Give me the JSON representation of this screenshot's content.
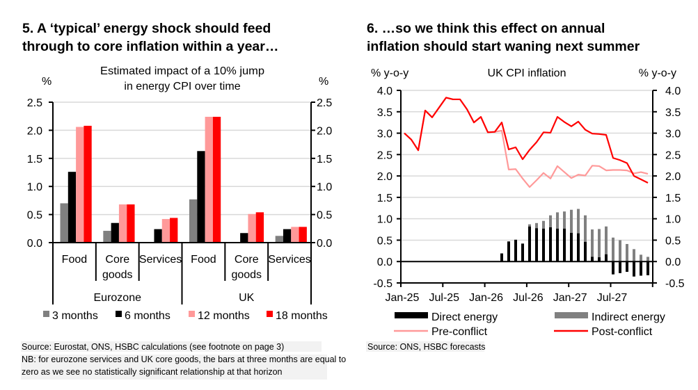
{
  "chart_data": [
    {
      "type": "bar",
      "title": "5. A ‘typical’ energy shock should feed through to core inflation within a year…",
      "title_lines": [
        "5. A ‘typical’ energy shock should feed",
        "through to core inflation within a year…"
      ],
      "subtitle_lines": [
        "Estimated impact of a 10% jump",
        "in energy CPI over time"
      ],
      "ylabel_left": "%",
      "ylabel_right": "%",
      "ylim": [
        0,
        2.5
      ],
      "yticks": [
        "0.0",
        "0.5",
        "1.0",
        "1.5",
        "2.0",
        "2.5"
      ],
      "grid": true,
      "groups": [
        {
          "label": "Eurozone",
          "categories": [
            "Food",
            "Core goods",
            "Services"
          ]
        },
        {
          "label": "UK",
          "categories": [
            "Food",
            "Core goods",
            "Services"
          ]
        }
      ],
      "category_lines": [
        [
          "Food"
        ],
        [
          "Core",
          "goods"
        ],
        [
          "Services"
        ],
        [
          "Food"
        ],
        [
          "Core",
          "goods"
        ],
        [
          "Services"
        ]
      ],
      "series": [
        {
          "name": "3 months",
          "color": "#808080",
          "values": [
            0.7,
            0.21,
            0.0,
            0.77,
            0.0,
            0.12
          ]
        },
        {
          "name": "6 months",
          "color": "#000000",
          "values": [
            1.26,
            0.35,
            0.24,
            1.63,
            0.17,
            0.24
          ]
        },
        {
          "name": "12 months",
          "color": "#ff9999",
          "values": [
            2.06,
            0.68,
            0.42,
            2.24,
            0.51,
            0.28
          ]
        },
        {
          "name": "18 months",
          "color": "#ff0000",
          "values": [
            2.08,
            0.68,
            0.44,
            2.24,
            0.54,
            0.28
          ]
        }
      ],
      "legend_position": "bottom",
      "source": "Source: Eurostat, ONS, HSBC calculations (see footnote on page 3)",
      "note_lines": [
        "NB: for eurozone services and UK core goods, the bars at three months are equal to",
        "zero as we see no statistically significant relationship at that horizon"
      ]
    },
    {
      "type": "bar+line",
      "title_lines": [
        "6. …so we think this effect on annual",
        "inflation should start waning next summer"
      ],
      "subtitle": "UK CPI inflation",
      "ylabel_left": "% y-o-y",
      "ylabel_right": "% y-o-y",
      "ylim": [
        -0.5,
        4.0
      ],
      "yticks": [
        "-0.5",
        "0.0",
        "0.5",
        "1.0",
        "1.5",
        "2.0",
        "2.5",
        "3.0",
        "3.5",
        "4.0"
      ],
      "grid": true,
      "x_start": "Jan-25",
      "x_frequency": "monthly",
      "xticks": [
        "Jan-25",
        "Jul-25",
        "Jan-26",
        "Jul-26",
        "Jan-27",
        "Jul-27"
      ],
      "bars": [
        {
          "name": "Direct energy",
          "color": "#000000",
          "values": [
            0,
            0,
            0,
            0,
            0,
            0,
            0,
            0,
            0,
            0,
            0,
            0,
            0,
            0,
            0.19,
            0.47,
            0.51,
            0.42,
            0.82,
            0.78,
            0.77,
            0.8,
            0.77,
            0.77,
            0.67,
            0.66,
            0.46,
            0.11,
            0.1,
            0.17,
            -0.3,
            -0.27,
            -0.24,
            -0.35,
            -0.33,
            -0.32
          ]
        },
        {
          "name": "Indirect energy",
          "color": "#808080",
          "values": [
            0,
            0,
            0,
            0,
            0,
            0,
            0,
            0,
            0,
            0,
            0,
            0,
            0,
            0,
            0,
            0,
            0,
            0,
            0.05,
            0.12,
            0.18,
            0.28,
            0.38,
            0.4,
            0.54,
            0.57,
            0.62,
            0.64,
            0.66,
            0.65,
            0.56,
            0.5,
            0.41,
            0.29,
            0.16,
            0.11
          ]
        }
      ],
      "lines": [
        {
          "name": "Pre-conflict",
          "color": "#ff9999",
          "values": [
            3.0,
            2.85,
            2.6,
            3.53,
            3.37,
            3.6,
            3.83,
            3.79,
            3.79,
            3.56,
            3.25,
            3.38,
            3.02,
            3.03,
            3.06,
            2.15,
            2.16,
            1.94,
            1.74,
            1.9,
            2.07,
            1.94,
            2.23,
            2.09,
            1.95,
            2.03,
            2.01,
            2.24,
            2.23,
            2.13,
            2.14,
            2.14,
            2.13,
            2.06,
            2.09,
            2.05
          ]
        },
        {
          "name": "Post-conflict",
          "color": "#ff0000",
          "values": [
            3.0,
            2.85,
            2.6,
            3.53,
            3.37,
            3.6,
            3.83,
            3.79,
            3.79,
            3.56,
            3.25,
            3.38,
            3.02,
            3.03,
            3.25,
            2.62,
            2.67,
            2.39,
            2.61,
            2.79,
            3.02,
            3.01,
            3.38,
            3.26,
            3.16,
            3.27,
            3.08,
            2.99,
            2.98,
            2.96,
            2.42,
            2.37,
            2.3,
            2.0,
            1.92,
            1.84
          ]
        }
      ],
      "legend_position": "bottom",
      "source": "Source: ONS, HSBC forecasts"
    }
  ]
}
